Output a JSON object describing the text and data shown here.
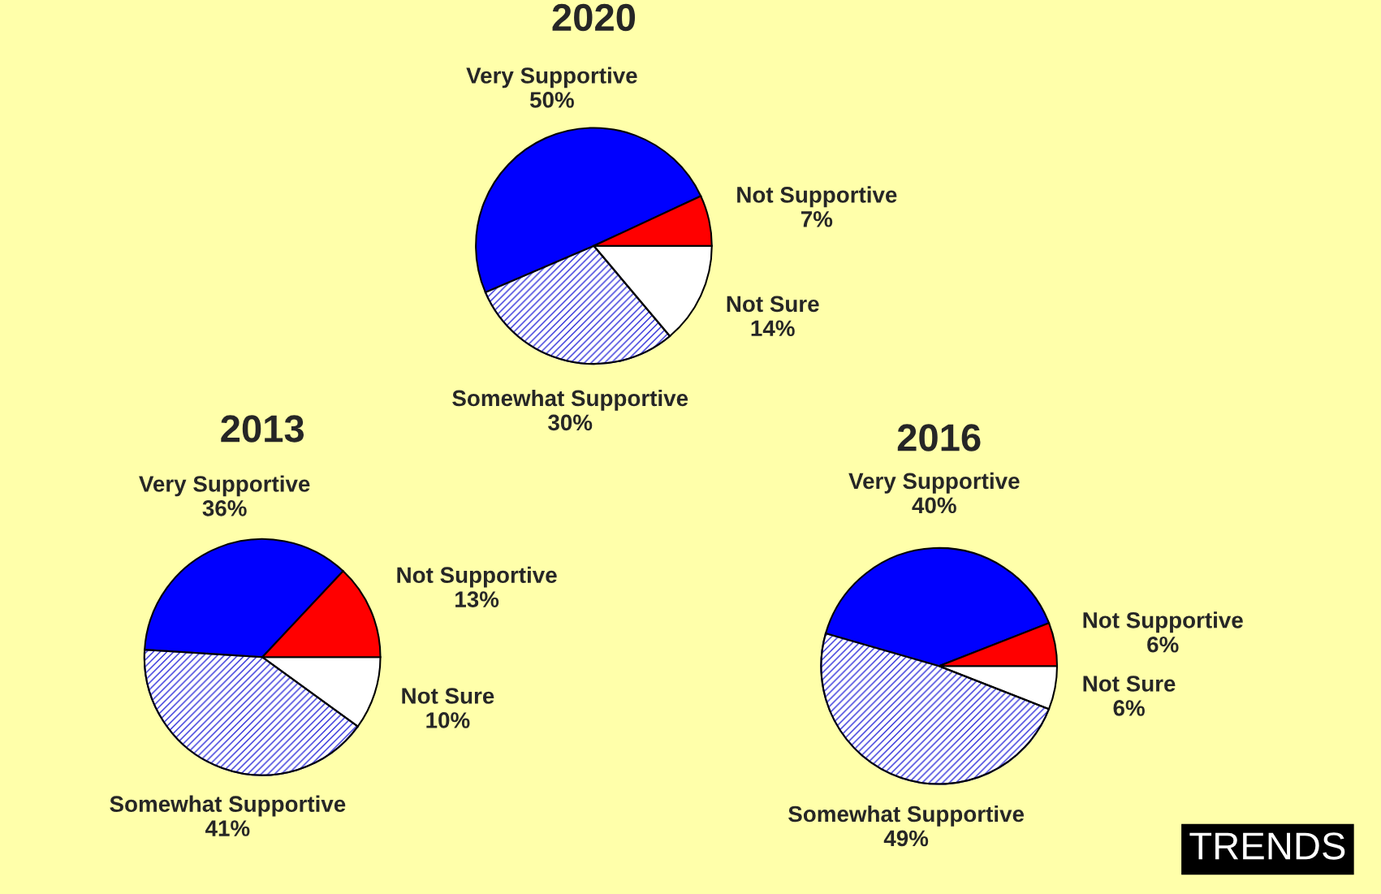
{
  "chart_data": [
    {
      "type": "pie",
      "title": "2020",
      "categories": [
        "Very Supportive",
        "Somewhat Supportive",
        "Not Sure",
        "Not Supportive"
      ],
      "values": [
        50,
        30,
        14,
        7
      ],
      "value_labels": [
        "50%",
        "30%",
        "14%",
        "7%"
      ],
      "colors": [
        "#0000ff",
        "#2b2bd9",
        "#ffffff",
        "#ff0000"
      ]
    },
    {
      "type": "pie",
      "title": "2013",
      "categories": [
        "Very Supportive",
        "Somewhat Supportive",
        "Not Sure",
        "Not Supportive"
      ],
      "values": [
        36,
        41,
        10,
        13
      ],
      "value_labels": [
        "36%",
        "41%",
        "10%",
        "13%"
      ],
      "colors": [
        "#0000ff",
        "#2b2bd9",
        "#ffffff",
        "#ff0000"
      ]
    },
    {
      "type": "pie",
      "title": "2016",
      "categories": [
        "Very Supportive",
        "Somewhat Supportive",
        "Not Sure",
        "Not Supportive"
      ],
      "values": [
        40,
        49,
        6,
        6
      ],
      "value_labels": [
        "40%",
        "49%",
        "6%",
        "6%"
      ],
      "colors": [
        "#0000ff",
        "#2b2bd9",
        "#ffffff",
        "#ff0000"
      ],
      "annotations": [
        "TRENDS"
      ]
    }
  ]
}
